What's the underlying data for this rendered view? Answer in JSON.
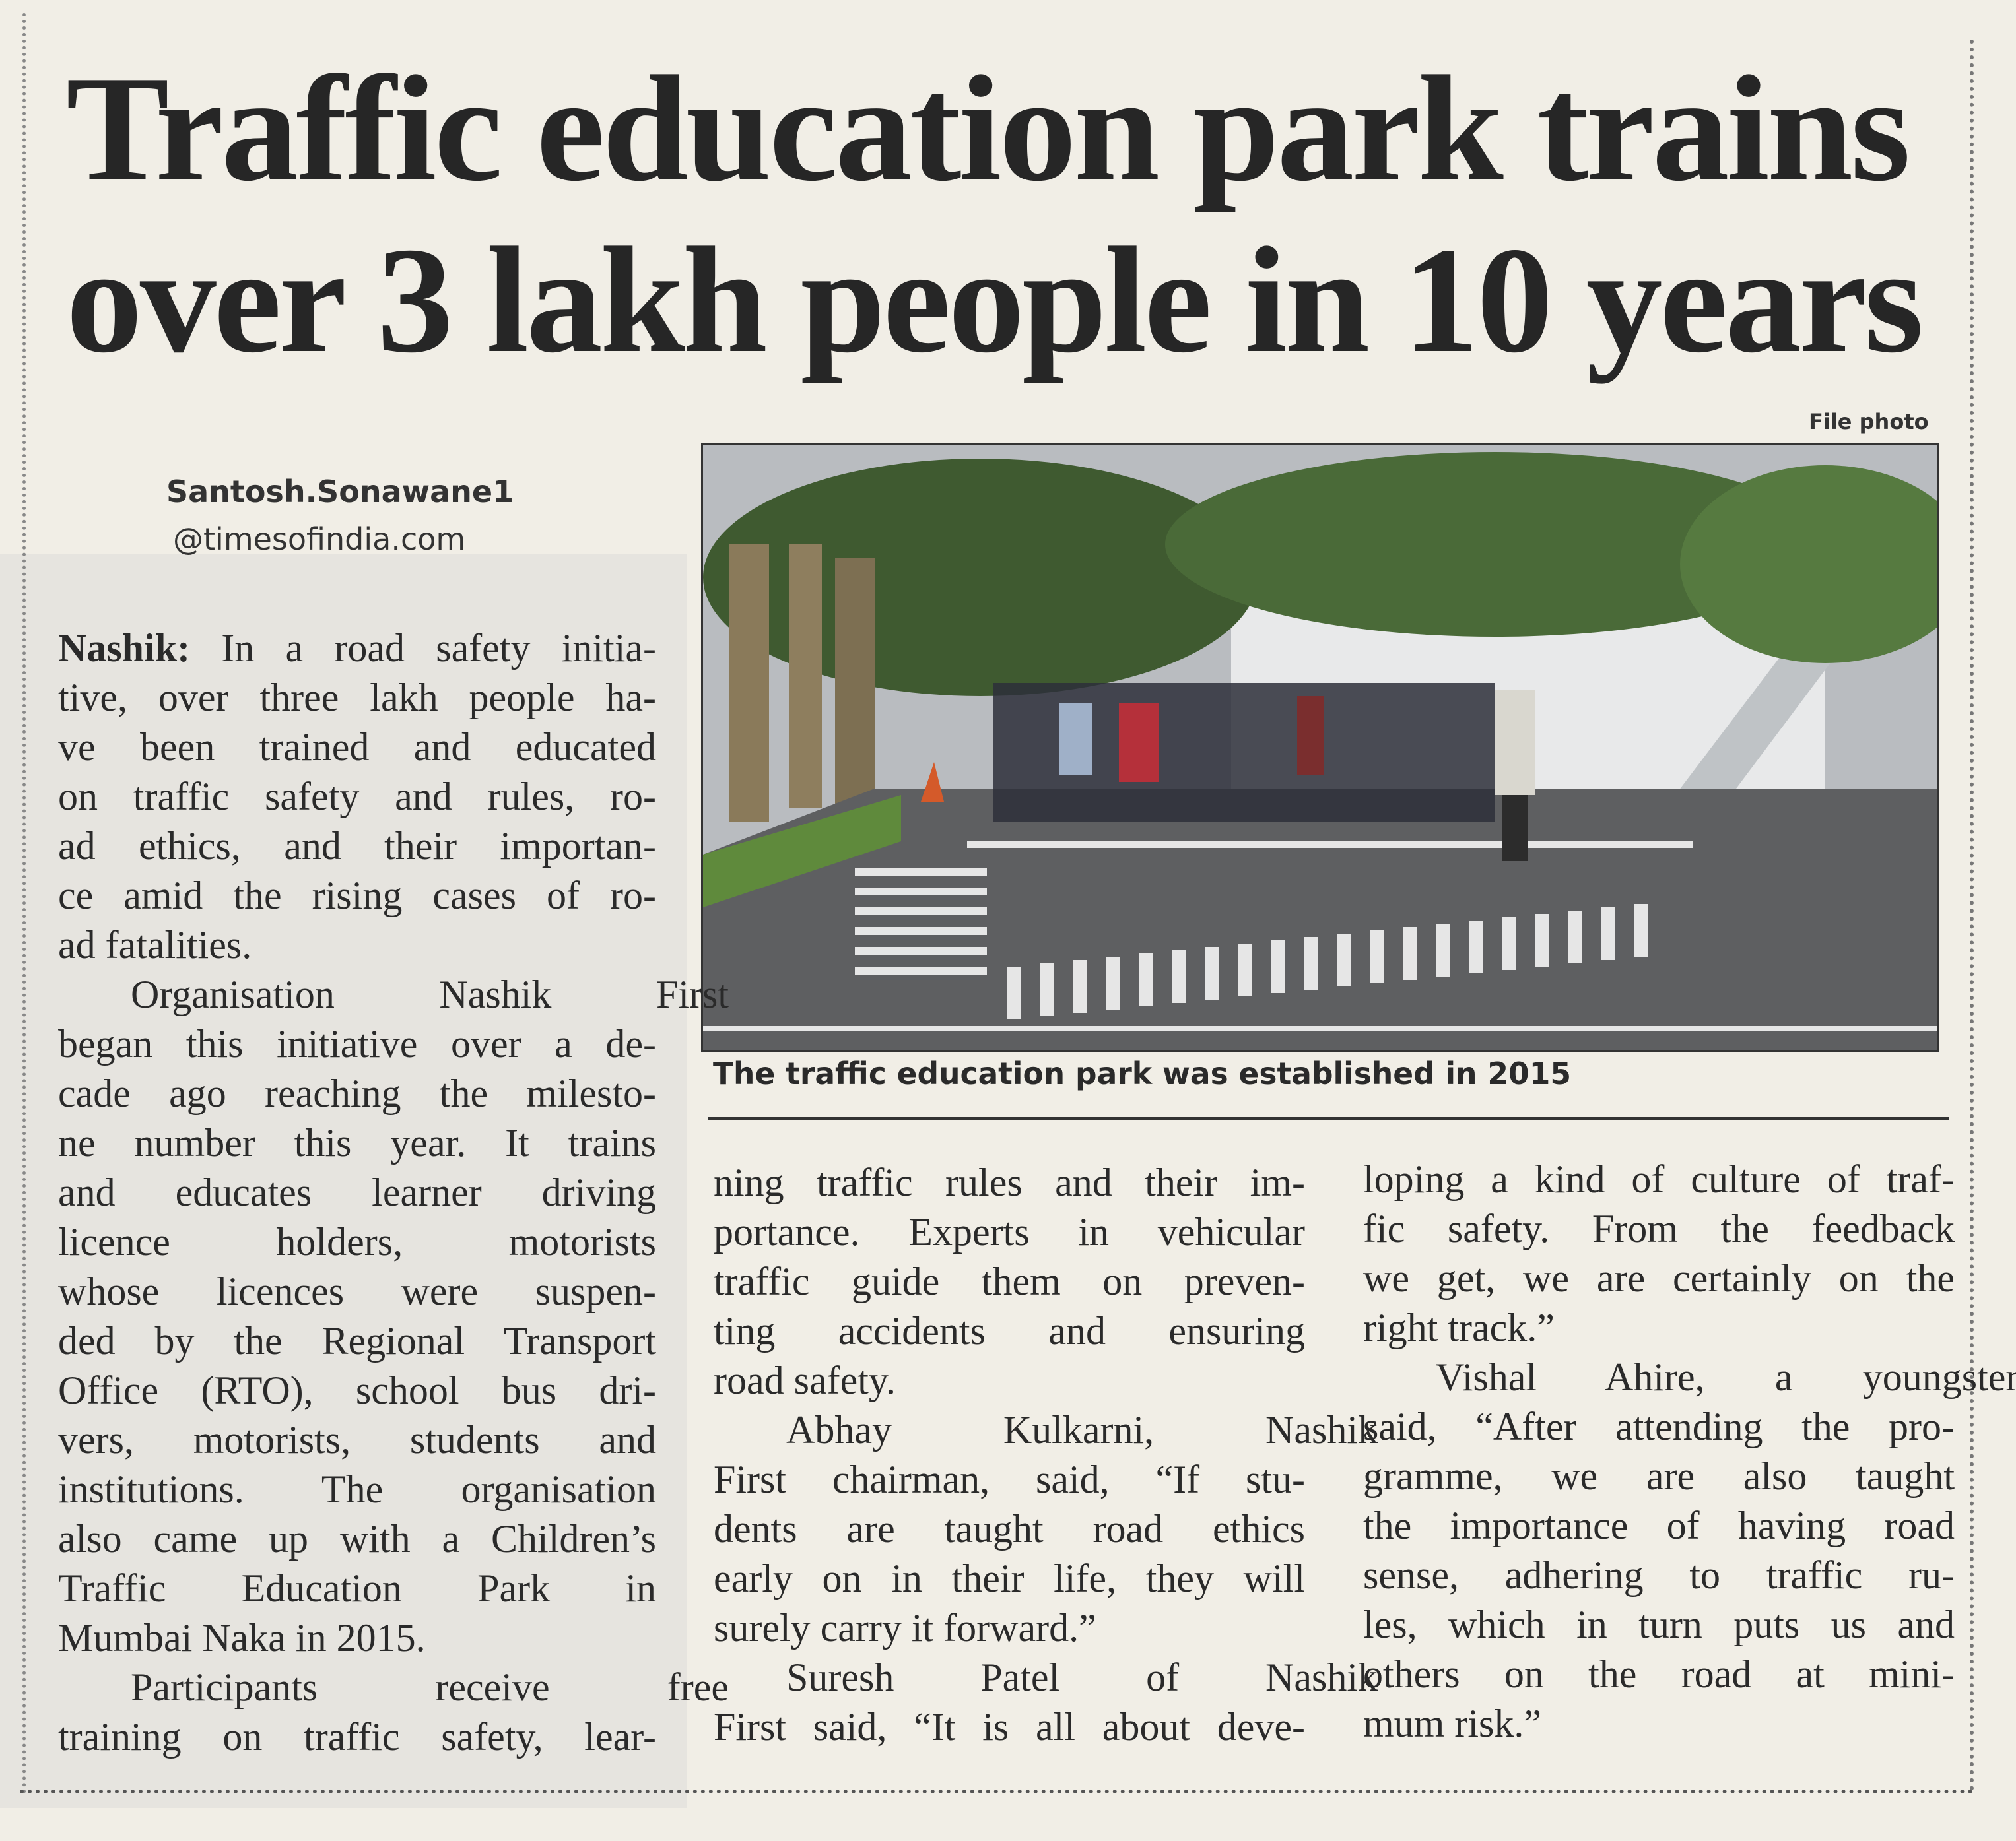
{
  "headline": {
    "line1": "Traffic education park trains",
    "line2": "over 3 lakh people in 10 years"
  },
  "byline": {
    "name": "Santosh.Sonawane1",
    "email": "@timesofindia.com"
  },
  "photo": {
    "credit": "File photo",
    "caption": "The traffic education park was established in 2015"
  },
  "columns": [
    {
      "lines": [
        {
          "lead": "Nashik:",
          "text": " In a road safety initia-"
        },
        {
          "text": "tive, over three lakh people ha-"
        },
        {
          "text": "ve been trained and educated"
        },
        {
          "text": "on traffic safety and rules, ro-"
        },
        {
          "text": "ad ethics, and their importan-"
        },
        {
          "text": "ce amid the rising cases of ro-"
        },
        {
          "text": "ad fatalities.",
          "last": true
        },
        {
          "text": "Organisation Nashik First",
          "indent": true
        },
        {
          "text": "began this initiative over a de-"
        },
        {
          "text": "cade ago reaching the milesto-"
        },
        {
          "text": "ne number this year. It trains"
        },
        {
          "text": "and educates learner driving"
        },
        {
          "text": "licence holders, motorists"
        },
        {
          "text": "whose licences were suspen-"
        },
        {
          "text": "ded by the Regional Transport"
        },
        {
          "text": "Office (RTO), school bus dri-"
        },
        {
          "text": "vers, motorists, students and"
        },
        {
          "text": "institutions. The organisation"
        },
        {
          "text": "also came up with a Children’s"
        },
        {
          "text": "Traffic Education Park in"
        },
        {
          "text": "Mumbai Naka in 2015.",
          "last": true
        },
        {
          "text": "Participants receive free",
          "indent": true
        },
        {
          "text": "training on traffic safety, lear-"
        }
      ]
    },
    {
      "lines": [
        {
          "text": "ning traffic rules and their im-"
        },
        {
          "text": "portance. Experts in vehicular"
        },
        {
          "text": "traffic guide them on preven-"
        },
        {
          "text": "ting accidents and ensuring"
        },
        {
          "text": "road safety.",
          "last": true
        },
        {
          "text": "Abhay Kulkarni, Nashik",
          "indent": true
        },
        {
          "text": "First chairman, said, “If stu-"
        },
        {
          "text": "dents are taught road ethics"
        },
        {
          "text": "early on in their life, they will"
        },
        {
          "text": "surely carry it forward.”",
          "last": true
        },
        {
          "text": "Suresh Patel of Nashik",
          "indent": true
        },
        {
          "text": "First said, “It is all about deve-"
        }
      ]
    },
    {
      "lines": [
        {
          "text": "loping a kind of culture of traf-"
        },
        {
          "text": "fic safety. From the feedback"
        },
        {
          "text": "we get, we are certainly on the"
        },
        {
          "text": "right track.”",
          "last": true
        },
        {
          "text": "Vishal Ahire, a youngster,",
          "indent": true
        },
        {
          "text": "said, “After attending the pro-"
        },
        {
          "text": "gramme, we are also taught"
        },
        {
          "text": "the importance of having road"
        },
        {
          "text": "sense, adhering to traffic ru-"
        },
        {
          "text": "les, which in turn puts us and"
        },
        {
          "text": "others on the road at mini-"
        },
        {
          "text": "mum risk.”",
          "last": true
        }
      ]
    }
  ]
}
